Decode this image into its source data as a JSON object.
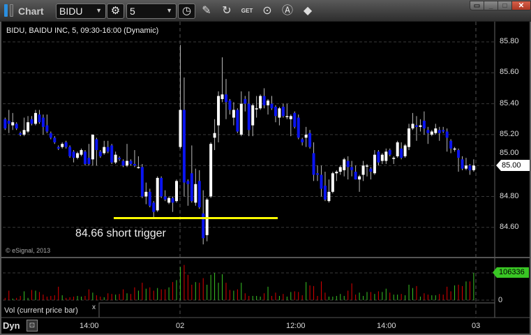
{
  "window": {
    "title": "Chart",
    "controls": [
      "restore-menu",
      "minimize",
      "maximize",
      "close"
    ]
  },
  "toolbar": {
    "symbol": "BIDU",
    "interval": "5",
    "icons": [
      "settings-gear-icon",
      "clock-icon",
      "pencil-icon",
      "refresh-icon",
      "get-icon",
      "play-icon",
      "auto-scale-icon",
      "link-icon"
    ],
    "get_label": "GET"
  },
  "chart": {
    "header": "BIDU, BAIDU INC, 5, 09:30-16:00 (Dynamic)",
    "copyright": "© eSignal, 2013",
    "annotation": "84.66 short trigger",
    "annotation_level": 84.66,
    "last_price": "85.00",
    "price_ticks": [
      "85.80",
      "85.60",
      "85.40",
      "85.20",
      "85.00",
      "84.80",
      "84.60"
    ],
    "x_ticks": [
      "14:00",
      "02",
      "12:00",
      "14:00",
      "03"
    ],
    "volume_label": "Vol (current price bar)",
    "volume_close_label": "x",
    "volume_last": "106336",
    "volume_zero": "0",
    "dyn_label": "Dyn",
    "colors": {
      "up": "#ffffff",
      "down": "#0a14f0",
      "vol_up": "#39c624",
      "vol_down": "#e00000",
      "trigger_line": "#ffff00",
      "background": "#000000"
    }
  },
  "chart_data": {
    "type": "candlestick",
    "ylim": [
      84.45,
      85.85
    ],
    "ohlc": [
      [
        85.3,
        85.31,
        85.23,
        85.24
      ],
      [
        85.29,
        85.36,
        85.21,
        85.27
      ],
      [
        85.26,
        85.34,
        85.23,
        85.28
      ],
      [
        85.27,
        85.28,
        85.23,
        85.24
      ],
      [
        85.21,
        85.22,
        85.19,
        85.2
      ],
      [
        85.2,
        85.31,
        85.19,
        85.23
      ],
      [
        85.22,
        85.32,
        85.21,
        85.28
      ],
      [
        85.3,
        85.32,
        85.26,
        85.27
      ],
      [
        85.27,
        85.36,
        85.26,
        85.34
      ],
      [
        85.33,
        85.36,
        85.27,
        85.28
      ],
      [
        85.31,
        85.33,
        85.2,
        85.25
      ],
      [
        85.26,
        85.33,
        85.21,
        85.22
      ],
      [
        85.21,
        85.22,
        85.17,
        85.18
      ],
      [
        85.18,
        85.19,
        85.14,
        85.15
      ],
      [
        85.12,
        85.13,
        85.1,
        85.11
      ],
      [
        85.12,
        85.15,
        85.11,
        85.14
      ],
      [
        85.15,
        85.16,
        85.11,
        85.12
      ],
      [
        85.12,
        85.13,
        85.05,
        85.06
      ],
      [
        85.09,
        85.1,
        85.02,
        85.05
      ],
      [
        85.05,
        85.09,
        85.04,
        85.08
      ],
      [
        85.07,
        85.11,
        85.06,
        85.1
      ],
      [
        85.09,
        85.1,
        85.0,
        85.01
      ],
      [
        85.05,
        85.14,
        85.0,
        85.01
      ],
      [
        85.04,
        85.2,
        85.0,
        85.2
      ],
      [
        85.17,
        85.18,
        85.0,
        85.1
      ],
      [
        85.09,
        85.1,
        85.05,
        85.06
      ],
      [
        85.08,
        85.16,
        85.07,
        85.12
      ],
      [
        85.12,
        85.16,
        85.08,
        85.09
      ],
      [
        85.13,
        85.14,
        85.01,
        85.02
      ],
      [
        85.02,
        85.09,
        85.01,
        85.07
      ],
      [
        85.05,
        85.06,
        85.03,
        85.04
      ],
      [
        85.03,
        85.04,
        84.99,
        85.0
      ],
      [
        85.0,
        85.14,
        84.99,
        85.03
      ],
      [
        85.03,
        85.04,
        85.0,
        85.01
      ],
      [
        85.01,
        85.1,
        84.99,
        85.0
      ],
      [
        84.99,
        85.06,
        84.98,
        84.99
      ],
      [
        84.99,
        85.01,
        84.79,
        84.8
      ],
      [
        84.8,
        84.89,
        84.75,
        84.83
      ],
      [
        84.83,
        84.85,
        84.73,
        84.74
      ],
      [
        84.76,
        84.77,
        84.66,
        84.7
      ],
      [
        84.71,
        84.93,
        84.7,
        84.92
      ],
      [
        84.92,
        84.93,
        84.79,
        84.8
      ],
      [
        84.8,
        84.84,
        84.77,
        84.78
      ],
      [
        84.76,
        84.8,
        84.75,
        84.79
      ],
      [
        84.79,
        84.8,
        84.7,
        84.76
      ],
      [
        84.77,
        84.91,
        84.76,
        84.9
      ],
      [
        85.12,
        85.78,
        85.11,
        85.36
      ],
      [
        85.36,
        85.57,
        84.8,
        84.89
      ],
      [
        84.9,
        84.91,
        84.74,
        84.88
      ],
      [
        84.95,
        85.13,
        84.76,
        84.77
      ],
      [
        84.76,
        84.98,
        84.74,
        84.88
      ],
      [
        84.9,
        84.97,
        84.72,
        84.73
      ],
      [
        84.69,
        84.84,
        84.49,
        84.53
      ],
      [
        84.55,
        84.79,
        84.51,
        84.78
      ],
      [
        84.8,
        85.15,
        84.79,
        85.14
      ],
      [
        85.18,
        85.3,
        85.1,
        85.21
      ],
      [
        85.26,
        85.48,
        85.15,
        85.45
      ],
      [
        85.43,
        85.7,
        85.41,
        85.46
      ],
      [
        85.46,
        85.56,
        85.3,
        85.41
      ],
      [
        85.42,
        85.43,
        85.33,
        85.36
      ],
      [
        85.31,
        85.41,
        85.26,
        85.36
      ],
      [
        85.36,
        85.37,
        85.21,
        85.22
      ],
      [
        85.2,
        85.48,
        85.19,
        85.4
      ],
      [
        85.43,
        85.45,
        85.35,
        85.4
      ],
      [
        85.4,
        85.48,
        85.19,
        85.23
      ],
      [
        85.26,
        85.4,
        85.19,
        85.39
      ],
      [
        85.37,
        85.45,
        85.31,
        85.37
      ],
      [
        85.37,
        85.46,
        85.36,
        85.45
      ],
      [
        85.45,
        85.5,
        85.37,
        85.39
      ],
      [
        85.39,
        85.43,
        85.33,
        85.42
      ],
      [
        85.4,
        85.45,
        85.36,
        85.37
      ],
      [
        85.38,
        85.39,
        85.28,
        85.32
      ],
      [
        85.31,
        85.38,
        85.26,
        85.37
      ],
      [
        85.38,
        85.4,
        85.31,
        85.32
      ],
      [
        85.32,
        85.4,
        85.3,
        85.32
      ],
      [
        85.3,
        85.33,
        85.19,
        85.32
      ],
      [
        85.34,
        85.35,
        85.24,
        85.25
      ],
      [
        85.31,
        85.33,
        85.17,
        85.18
      ],
      [
        85.17,
        85.18,
        85.13,
        85.15
      ],
      [
        85.18,
        85.25,
        85.12,
        85.2
      ],
      [
        85.21,
        85.23,
        85.11,
        85.12
      ],
      [
        85.08,
        85.15,
        84.9,
        84.94
      ],
      [
        84.95,
        85.0,
        84.9,
        84.94
      ],
      [
        84.94,
        85.0,
        84.8,
        84.85
      ],
      [
        84.87,
        84.96,
        84.77,
        84.78
      ],
      [
        84.77,
        84.91,
        84.76,
        84.83
      ],
      [
        84.83,
        84.96,
        84.82,
        84.95
      ],
      [
        84.95,
        84.97,
        84.9,
        84.96
      ],
      [
        84.96,
        85.0,
        84.94,
        84.99
      ],
      [
        84.97,
        85.05,
        84.93,
        85.04
      ],
      [
        85.03,
        85.06,
        84.91,
        84.99
      ],
      [
        84.99,
        85.03,
        84.93,
        84.97
      ],
      [
        84.96,
        85.0,
        84.91,
        84.91
      ],
      [
        84.91,
        84.94,
        84.83,
        84.93
      ],
      [
        84.94,
        85.03,
        84.9,
        85.0
      ],
      [
        85.0,
        85.01,
        84.93,
        85.0
      ],
      [
        84.98,
        84.99,
        84.91,
        84.96
      ],
      [
        84.95,
        85.1,
        84.94,
        85.07
      ],
      [
        85.09,
        85.1,
        85.0,
        85.02
      ],
      [
        85.03,
        85.08,
        85.01,
        85.07
      ],
      [
        85.03,
        85.11,
        85.01,
        85.09
      ],
      [
        85.1,
        85.11,
        85.06,
        85.07
      ],
      [
        85.05,
        85.06,
        85.01,
        85.05
      ],
      [
        85.06,
        85.16,
        85.05,
        85.15
      ],
      [
        85.11,
        85.15,
        85.04,
        85.05
      ],
      [
        85.06,
        85.14,
        85.05,
        85.13
      ],
      [
        85.12,
        85.27,
        85.1,
        85.24
      ],
      [
        85.24,
        85.34,
        85.23,
        85.27
      ],
      [
        85.26,
        85.32,
        85.16,
        85.25
      ],
      [
        85.25,
        85.3,
        85.22,
        85.26
      ],
      [
        85.29,
        85.35,
        85.2,
        85.24
      ],
      [
        85.23,
        85.25,
        85.14,
        85.21
      ],
      [
        85.2,
        85.23,
        85.19,
        85.22
      ],
      [
        85.21,
        85.27,
        85.2,
        85.24
      ],
      [
        85.23,
        85.25,
        85.16,
        85.21
      ],
      [
        85.23,
        85.25,
        85.21,
        85.22
      ],
      [
        85.22,
        85.24,
        85.09,
        85.18
      ],
      [
        85.16,
        85.17,
        85.08,
        85.11
      ],
      [
        85.11,
        85.12,
        85.09,
        85.11
      ],
      [
        85.1,
        85.11,
        84.96,
        85.05
      ],
      [
        85.04,
        85.06,
        84.97,
        84.98
      ],
      [
        84.98,
        85.05,
        84.97,
        85.0
      ],
      [
        85.0,
        85.01,
        84.94,
        84.97
      ],
      [
        84.97,
        85.04,
        84.96,
        85.0
      ]
    ],
    "volume": [
      8600,
      36900,
      6000,
      8600,
      16300,
      34300,
      8600,
      39500,
      36900,
      31700,
      21500,
      13700,
      16300,
      18900,
      52300,
      18900,
      8600,
      11200,
      13700,
      16300,
      13700,
      16300,
      42000,
      29200,
      18900,
      13700,
      11200,
      26600,
      24000,
      21500,
      24000,
      42000,
      26600,
      24000,
      49800,
      36900,
      67800,
      44600,
      49800,
      36900,
      47200,
      42000,
      42000,
      49800,
      70400,
      78100,
      129600,
      137300,
      98700,
      60100,
      70400,
      67800,
      85800,
      60100,
      98700,
      106300,
      67800,
      101200,
      67800,
      39500,
      36900,
      42000,
      67800,
      26600,
      16300,
      16300,
      16300,
      13700,
      26600,
      52300,
      16300,
      29200,
      16300,
      24000,
      13700,
      31700,
      34300,
      31700,
      18900,
      70400,
      57500,
      54900,
      16300,
      72900,
      29200,
      13700,
      13700,
      16300,
      24000,
      16300,
      36900,
      65200,
      21500,
      29200,
      16300,
      31700,
      31700,
      24000,
      34300,
      31700,
      44600,
      29200,
      21500,
      21500,
      24000,
      18900,
      60100,
      47200,
      54900,
      13700,
      26600,
      21500,
      18900,
      18900,
      24000,
      21500,
      52300,
      34300,
      57500,
      60100,
      54900,
      72900,
      72900,
      106336
    ],
    "volume_ylim": [
      0,
      106336
    ]
  }
}
